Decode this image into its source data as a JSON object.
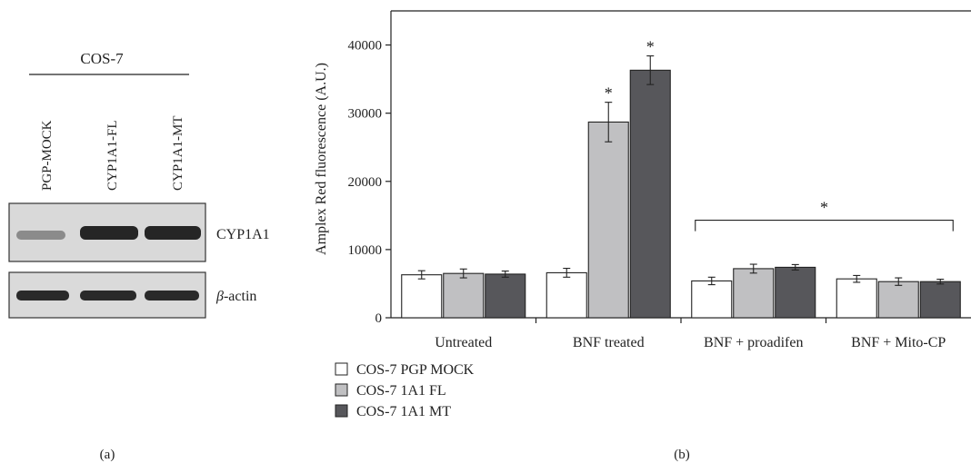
{
  "panel_a": {
    "cell_line": "COS-7",
    "lanes": [
      "PGP-MOCK",
      "CYP1A1-FL",
      "CYP1A1-MT"
    ],
    "blots": [
      {
        "label": "CYP1A1",
        "band_intensity": [
          0.35,
          1.0,
          1.0
        ]
      },
      {
        "label_prefix": "β",
        "label_suffix": "-actin",
        "band_intensity": [
          0.9,
          0.9,
          0.9
        ]
      }
    ],
    "caption": "(a)"
  },
  "panel_b": {
    "caption": "(b)",
    "significance_bracket_label": "*"
  },
  "chart_data": {
    "type": "bar",
    "ylabel": "Amplex Red fluorescence (A.U.)",
    "xlabel": "",
    "ylim": [
      0,
      45000
    ],
    "yticks": [
      0,
      10000,
      20000,
      30000,
      40000
    ],
    "grid": false,
    "legend_position": "bottom-left",
    "categories": [
      "Untreated",
      "BNF treated",
      "BNF + proadifen",
      "BNF + Mito-CP"
    ],
    "series": [
      {
        "name": "COS-7 PGP MOCK",
        "color": "#ffffff",
        "values": [
          6300,
          6600,
          5400,
          5700
        ],
        "errors": [
          600,
          650,
          550,
          500
        ],
        "significance": [
          "",
          "",
          "",
          ""
        ]
      },
      {
        "name": "COS-7 1A1 FL",
        "color": "#c0c0c2",
        "values": [
          6500,
          28700,
          7200,
          5300
        ],
        "errors": [
          650,
          2900,
          650,
          550
        ],
        "significance": [
          "",
          "*",
          "",
          ""
        ]
      },
      {
        "name": "COS-7 1A1 MT",
        "color": "#57575b",
        "values": [
          6400,
          36300,
          7400,
          5300
        ],
        "errors": [
          450,
          2100,
          400,
          350
        ],
        "significance": [
          "",
          "*",
          "",
          ""
        ]
      }
    ]
  }
}
